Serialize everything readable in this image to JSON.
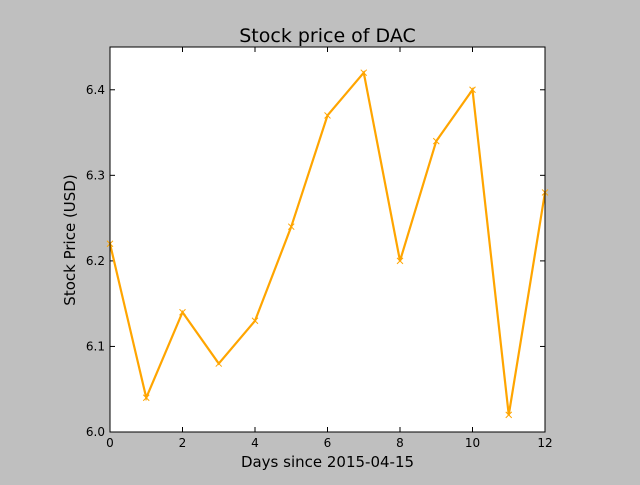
{
  "chart_data": {
    "type": "line",
    "title": "Stock price of DAC",
    "xlabel": "Days since 2015-04-15",
    "ylabel": "Stock Price (USD)",
    "xlim": [
      0,
      12
    ],
    "ylim": [
      6.0,
      6.45
    ],
    "xticks": [
      0,
      2,
      4,
      6,
      8,
      10,
      12
    ],
    "xtick_labels": [
      "0",
      "2",
      "4",
      "6",
      "8",
      "10",
      "12"
    ],
    "yticks": [
      6.0,
      6.1,
      6.2,
      6.3,
      6.4
    ],
    "ytick_labels": [
      "6.0",
      "6.1",
      "6.2",
      "6.3",
      "6.4"
    ],
    "grid": false,
    "legend": "none",
    "series": [
      {
        "color": "#ffa500",
        "marker": "x",
        "x": [
          0,
          1,
          2,
          3,
          4,
          5,
          6,
          7,
          8,
          9,
          10,
          11,
          12
        ],
        "y": [
          6.22,
          6.04,
          6.14,
          6.08,
          6.13,
          6.24,
          6.37,
          6.42,
          6.2,
          6.34,
          6.4,
          6.02,
          6.28
        ]
      }
    ]
  }
}
